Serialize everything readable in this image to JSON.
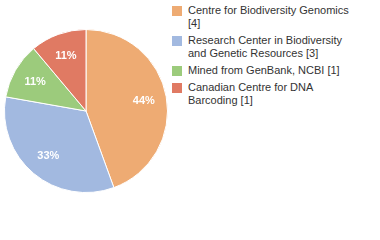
{
  "chart_data": {
    "type": "pie",
    "categories": [
      "Centre for Biodiversity Genomics [4]",
      "Research Center in Biodiversity and Genetic Resources [3]",
      "Mined from GenBank, NCBI [1]",
      "Canadian Centre for DNA Barcoding [1]"
    ],
    "values": [
      44,
      33,
      11,
      11
    ],
    "value_labels": [
      "44%",
      "33%",
      "11%",
      "11%"
    ],
    "colors": [
      "#eeab73",
      "#a2b9e0",
      "#9ccb7c",
      "#e07a63"
    ],
    "data_labels": true,
    "legend": "right"
  }
}
